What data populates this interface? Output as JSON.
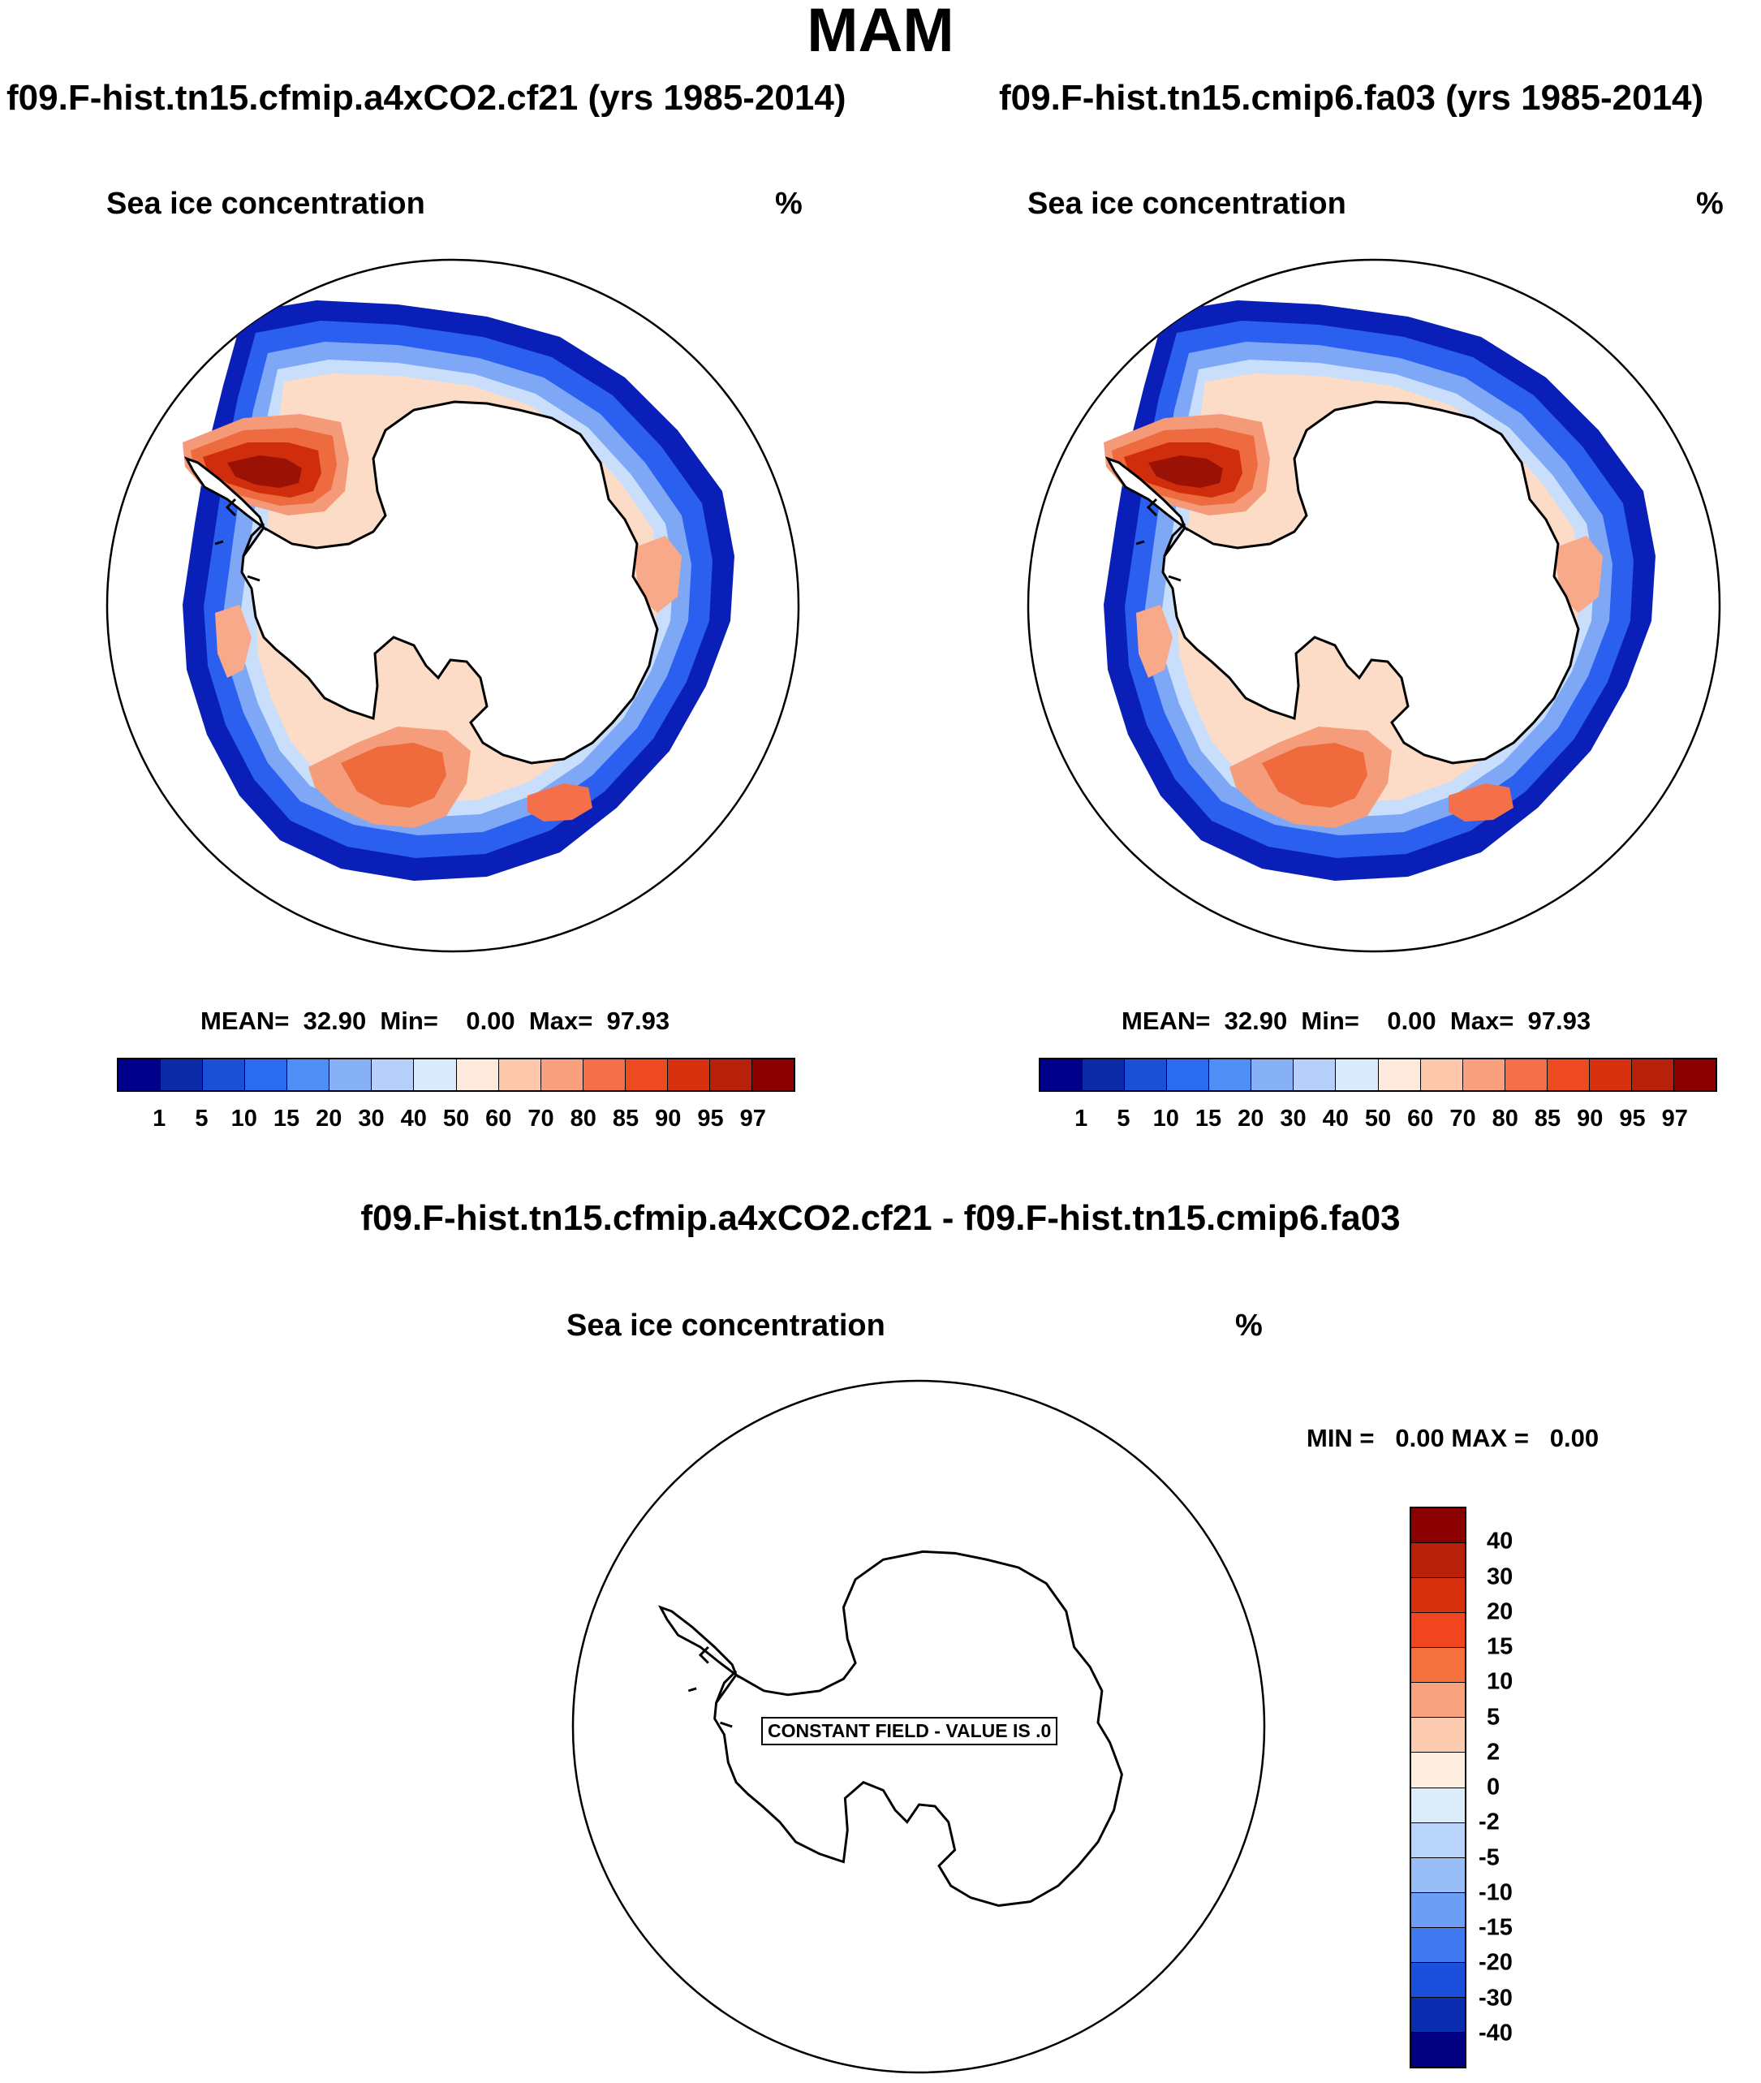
{
  "title": "MAM",
  "panels": [
    {
      "id": "left",
      "case_title": "f09.F-hist.tn15.cfmip.a4xCO2.cf21 (yrs 1985-2014)",
      "variable": "Sea ice concentration",
      "units": "%",
      "stats": "MEAN=  32.90  Min=    0.00  Max=  97.93",
      "colorbar": {
        "colors": [
          "#00008b",
          "#0a2aa8",
          "#1a4fd6",
          "#2b6bf2",
          "#4f8ff5",
          "#86b1f7",
          "#b6d0fa",
          "#dbe9fc",
          "#fdeadc",
          "#fcc7ab",
          "#f9a07e",
          "#f4704a",
          "#ee4a22",
          "#d6300f",
          "#b8200a",
          "#8b0000"
        ],
        "labels": [
          "1",
          "5",
          "10",
          "15",
          "20",
          "30",
          "40",
          "50",
          "60",
          "70",
          "80",
          "85",
          "90",
          "95",
          "97"
        ]
      }
    },
    {
      "id": "right",
      "case_title": "f09.F-hist.tn15.cmip6.fa03 (yrs 1985-2014)",
      "variable": "Sea ice concentration",
      "units": "%",
      "stats": "MEAN=  32.90  Min=    0.00  Max=  97.93",
      "colorbar": {
        "colors": [
          "#00008b",
          "#0a2aa8",
          "#1a4fd6",
          "#2b6bf2",
          "#4f8ff5",
          "#86b1f7",
          "#b6d0fa",
          "#dbe9fc",
          "#fdeadc",
          "#fcc7ab",
          "#f9a07e",
          "#f4704a",
          "#ee4a22",
          "#d6300f",
          "#b8200a",
          "#8b0000"
        ],
        "labels": [
          "1",
          "5",
          "10",
          "15",
          "20",
          "30",
          "40",
          "50",
          "60",
          "70",
          "80",
          "85",
          "90",
          "95",
          "97"
        ]
      }
    }
  ],
  "difference": {
    "title": "f09.F-hist.tn15.cfmip.a4xCO2.cf21 - f09.F-hist.tn15.cmip6.fa03",
    "variable": "Sea ice concentration",
    "units": "%",
    "minmax": "MIN =   0.00 MAX =   0.00",
    "constant_label": "CONSTANT FIELD - VALUE IS .0",
    "colorbar": {
      "colors_top_to_bottom": [
        "#8b0000",
        "#b8200a",
        "#d6300f",
        "#f0451f",
        "#f4703f",
        "#f8a27f",
        "#fccbb0",
        "#fdeee0",
        "#dcecfb",
        "#b8d4fa",
        "#98bdf7",
        "#6d9df4",
        "#3f78ef",
        "#1c50dc",
        "#0b2eb0",
        "#000080"
      ],
      "labels_top_to_bottom": [
        "40",
        "30",
        "20",
        "15",
        "10",
        "5",
        "2",
        "0",
        "-2",
        "-5",
        "-10",
        "-15",
        "-20",
        "-30",
        "-40"
      ]
    }
  }
}
